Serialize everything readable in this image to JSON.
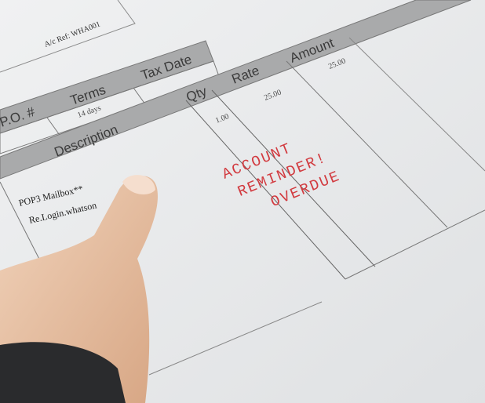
{
  "invoice": {
    "account_ref": "A/c Ref: WHA001",
    "po_header": "P.O. #",
    "terms_header": "Terms",
    "terms_value": "14 days",
    "tax_date_header": "Tax Date",
    "description_header": "Description",
    "qty_header": "Qty",
    "rate_header": "Rate",
    "amount_header": "Amount",
    "qty_value": "1.00",
    "rate_value": "25.00",
    "amount_value": "25.00",
    "item_line1": "POP3 Mailbox**",
    "item_line2": "Re.Login.whatson"
  },
  "stamp": {
    "line1": "ACCOUNT",
    "line2": "REMINDER!",
    "line3": "OVERDUE",
    "color": "#d23a3f"
  }
}
